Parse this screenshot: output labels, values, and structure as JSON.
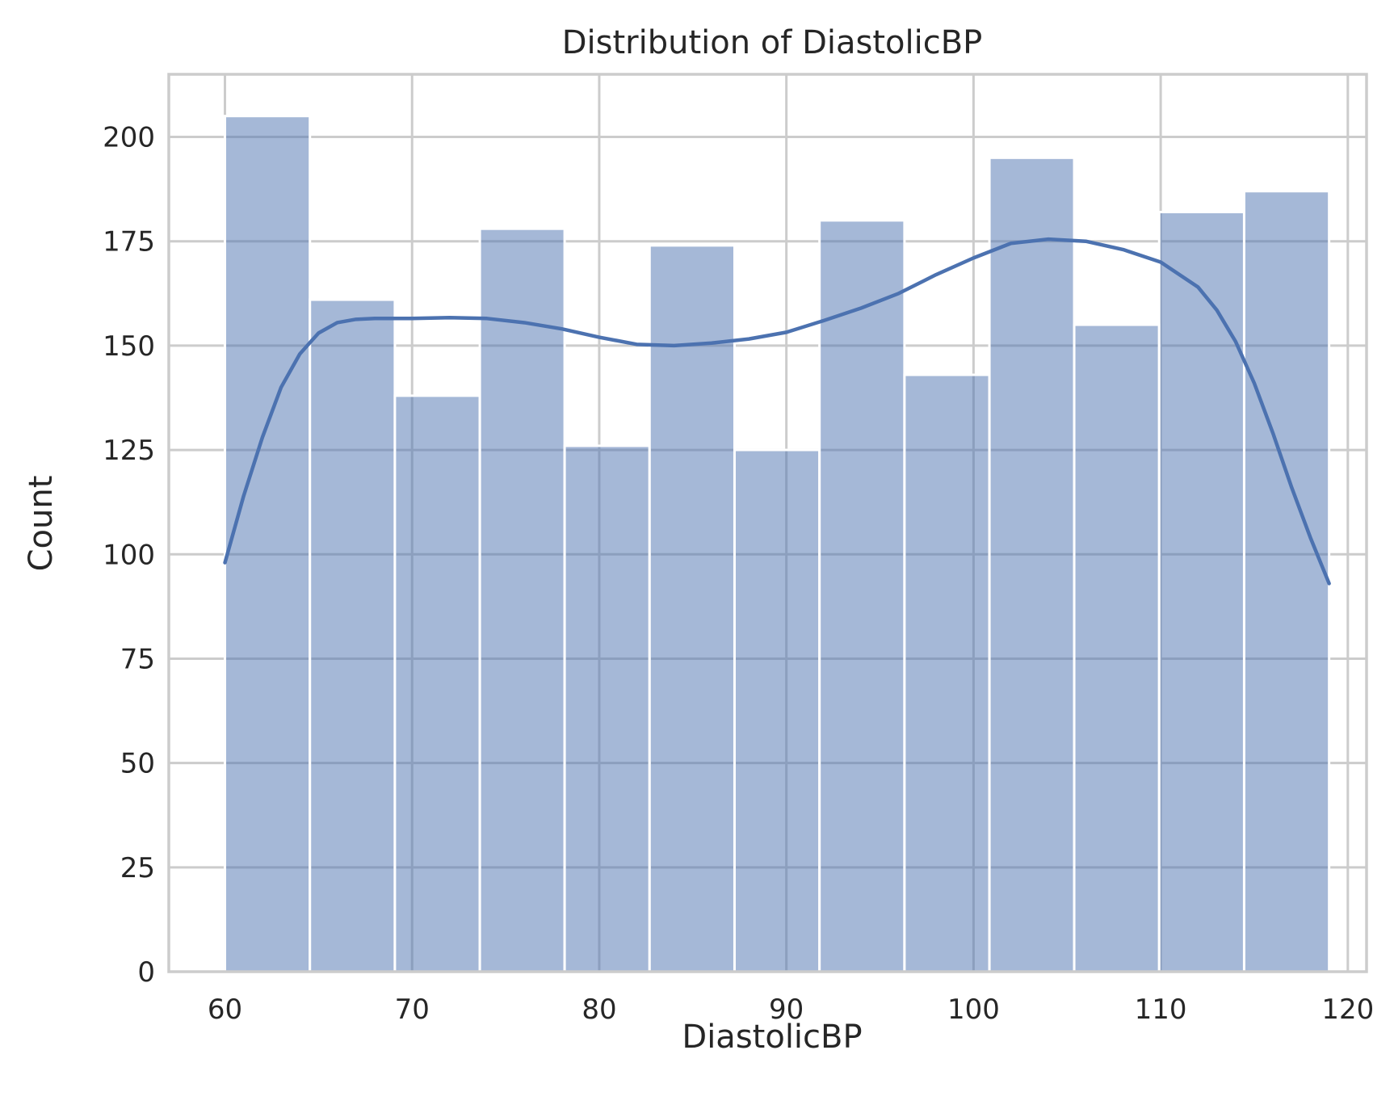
{
  "chart_data": {
    "type": "histogram",
    "title": "Distribution of DiastolicBP",
    "xlabel": "DiastolicBP",
    "ylabel": "Count",
    "xlim": [
      57,
      121
    ],
    "ylim": [
      0,
      215
    ],
    "xticks": [
      60,
      70,
      80,
      90,
      100,
      110,
      120
    ],
    "yticks": [
      0,
      25,
      50,
      75,
      100,
      125,
      150,
      175,
      200
    ],
    "grid": true,
    "bar_color": "#4c72b0",
    "bins": [
      {
        "x0": 60.0,
        "x1": 64.54,
        "count": 205
      },
      {
        "x0": 64.54,
        "x1": 69.08,
        "count": 161
      },
      {
        "x0": 69.08,
        "x1": 73.62,
        "count": 138
      },
      {
        "x0": 73.62,
        "x1": 78.15,
        "count": 178
      },
      {
        "x0": 78.15,
        "x1": 82.69,
        "count": 126
      },
      {
        "x0": 82.69,
        "x1": 87.23,
        "count": 174
      },
      {
        "x0": 87.23,
        "x1": 91.77,
        "count": 125
      },
      {
        "x0": 91.77,
        "x1": 96.31,
        "count": 180
      },
      {
        "x0": 96.31,
        "x1": 100.85,
        "count": 143
      },
      {
        "x0": 100.85,
        "x1": 105.38,
        "count": 195
      },
      {
        "x0": 105.38,
        "x1": 109.92,
        "count": 155
      },
      {
        "x0": 109.92,
        "x1": 114.46,
        "count": 182
      },
      {
        "x0": 114.46,
        "x1": 119.0,
        "count": 187
      }
    ],
    "kde": {
      "x": [
        60,
        61,
        62,
        63,
        64,
        65,
        66,
        67,
        68,
        70,
        72,
        74,
        76,
        78,
        80,
        82,
        84,
        86,
        88,
        90,
        92,
        94,
        96,
        98,
        100,
        102,
        104,
        106,
        108,
        110,
        112,
        113,
        114,
        115,
        116,
        117,
        118,
        119
      ],
      "y": [
        98,
        114,
        128,
        140,
        148,
        153,
        155.5,
        156.3,
        156.5,
        156.5,
        156.7,
        156.5,
        155.5,
        154,
        152,
        150.3,
        150,
        150.6,
        151.6,
        153.2,
        156,
        159,
        162.5,
        167,
        171,
        174.5,
        175.5,
        175,
        173,
        170,
        164,
        158.5,
        151,
        141,
        129,
        116,
        104,
        93
      ]
    }
  }
}
